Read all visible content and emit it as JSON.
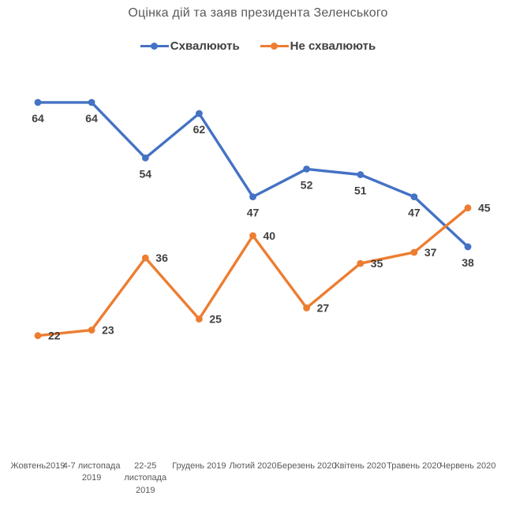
{
  "chart_data": {
    "type": "line",
    "title": "Оцінка дій та заяв президента Зеленського",
    "categories": [
      "Жовтень2019",
      "4-7 листопада\n2019",
      "22-25\nлистопада\n2019",
      "Грудень 2019",
      "Лютий 2020",
      "Березень 2020",
      "Квітень 2020",
      "Травень 2020",
      "Червень 2020"
    ],
    "series": [
      {
        "name": "Схвалюють",
        "color": "#4472C4",
        "values": [
          64,
          64,
          54,
          62,
          47,
          52,
          51,
          47,
          38
        ],
        "label_position": "below"
      },
      {
        "name": "Не схвалюють",
        "color": "#ED7D31",
        "values": [
          22,
          23,
          36,
          25,
          40,
          27,
          35,
          37,
          45
        ],
        "label_position": "right"
      }
    ],
    "ylim": [
      0,
      70
    ],
    "grid": false,
    "axes_visible": false,
    "legend_position": "top",
    "data_label_color": "#404040",
    "title_color": "#595959",
    "axis_label_color": "#595959"
  }
}
